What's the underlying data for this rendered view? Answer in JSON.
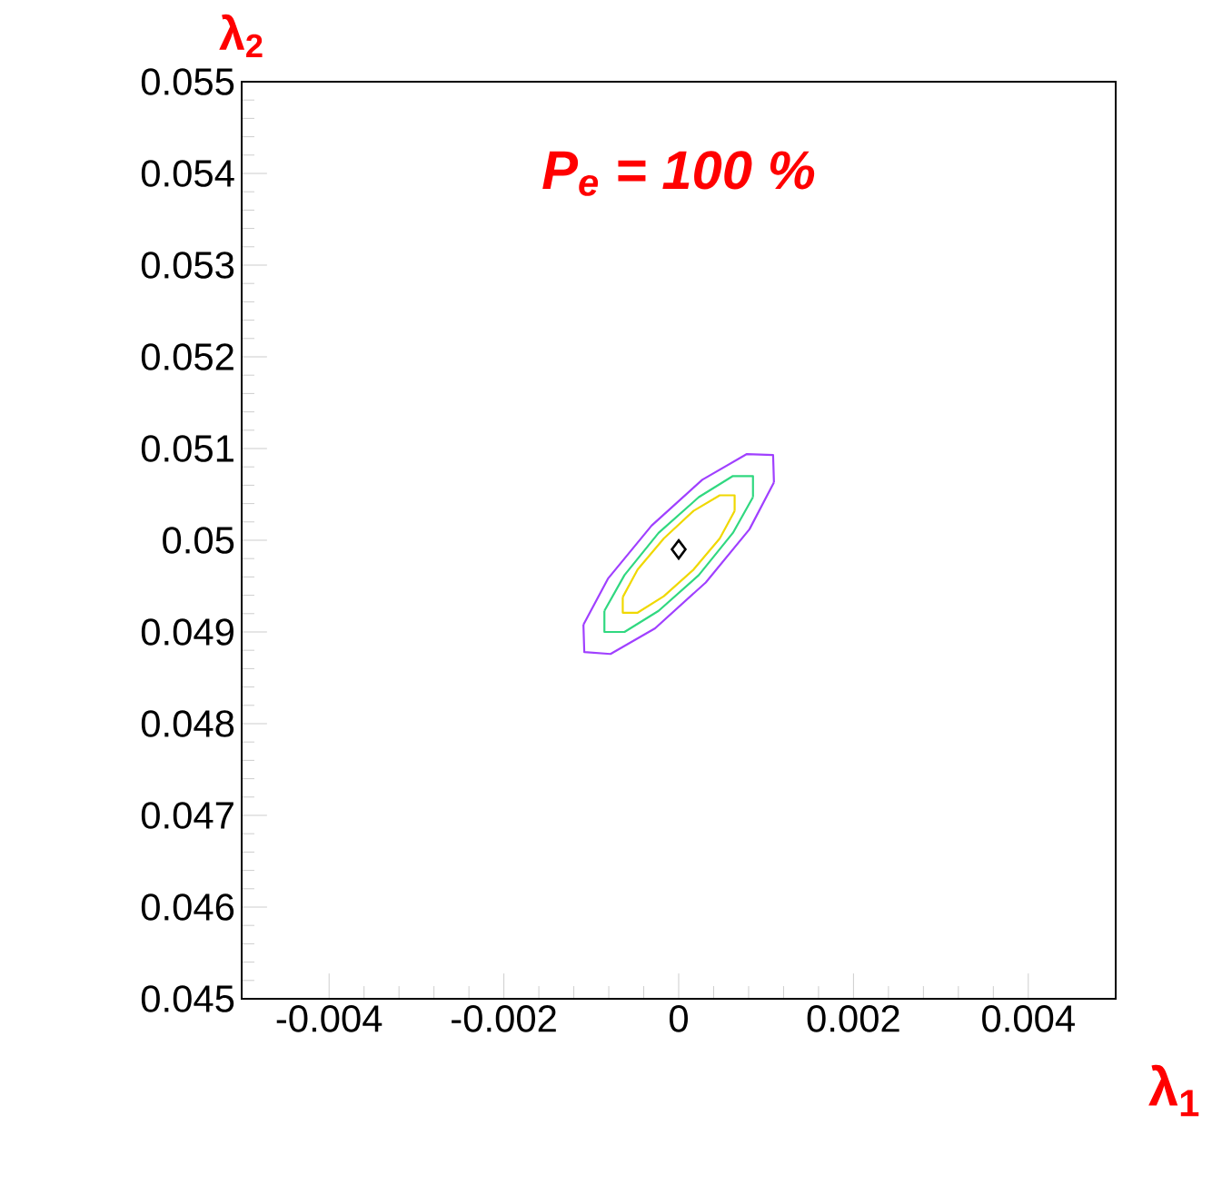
{
  "chart_data": {
    "type": "line",
    "xlabel": "λ$_{1}$",
    "ylabel": "λ$_{2}$",
    "annotations": [
      "P$_{e}$ = 100 %"
    ],
    "xlim": [
      -0.005,
      0.005
    ],
    "ylim": [
      0.045,
      0.055
    ],
    "xticks": [
      -0.004,
      -0.002,
      0,
      0.002,
      0.004
    ],
    "yticks": [
      0.045,
      0.046,
      0.047,
      0.048,
      0.049,
      0.05,
      0.051,
      0.052,
      0.053,
      0.054,
      0.055
    ],
    "marker": "none",
    "series": [
      {
        "type": "line",
        "color": "#a040ff",
        "x": [
          -0.00109,
          -0.00081,
          -0.00031,
          0.00027,
          0.00078,
          0.00108,
          0.00109
        ],
        "values": [
          0.04908,
          0.04958,
          0.05016,
          0.05066,
          0.05094,
          0.05093,
          0.05063
        ]
      },
      {
        "type": "line",
        "color": "#a040ff",
        "x": [
          -0.00109,
          -0.00108,
          -0.00078,
          -0.00027,
          0.00031,
          0.00081,
          0.00109
        ],
        "values": [
          0.04908,
          0.04878,
          0.04876,
          0.04904,
          0.04954,
          0.05012,
          0.05063
        ]
      },
      {
        "type": "line",
        "color": "#30d880",
        "x": [
          -0.00085,
          -0.00062,
          -0.00023,
          0.00023,
          0.00062,
          0.00085,
          0.00085
        ],
        "values": [
          0.04923,
          0.04962,
          0.05008,
          0.05047,
          0.0507,
          0.0507,
          0.05047
        ]
      },
      {
        "type": "line",
        "color": "#30d880",
        "x": [
          -0.00085,
          -0.00085,
          -0.00062,
          -0.00023,
          0.00023,
          0.00062,
          0.00085
        ],
        "values": [
          0.04923,
          0.049,
          0.049,
          0.04923,
          0.04962,
          0.05008,
          0.05047
        ]
      },
      {
        "type": "line",
        "color": "#f0d800",
        "x": [
          -0.00064,
          -0.00047,
          -0.00017,
          0.00017,
          0.00047,
          0.00064,
          0.00064
        ],
        "values": [
          0.04938,
          0.04968,
          0.05002,
          0.05032,
          0.05049,
          0.05049,
          0.05032
        ]
      },
      {
        "type": "line",
        "color": "#f0d800",
        "x": [
          -0.00064,
          -0.00064,
          -0.00047,
          -0.00017,
          0.00017,
          0.00047,
          0.00064
        ],
        "values": [
          0.04938,
          0.04921,
          0.04921,
          0.04939,
          0.04968,
          0.05002,
          0.05032
        ]
      },
      {
        "type": "scatter",
        "marker": "diamond",
        "color": "#000000",
        "x": [
          0
        ],
        "values": [
          0.0499
        ]
      }
    ]
  }
}
